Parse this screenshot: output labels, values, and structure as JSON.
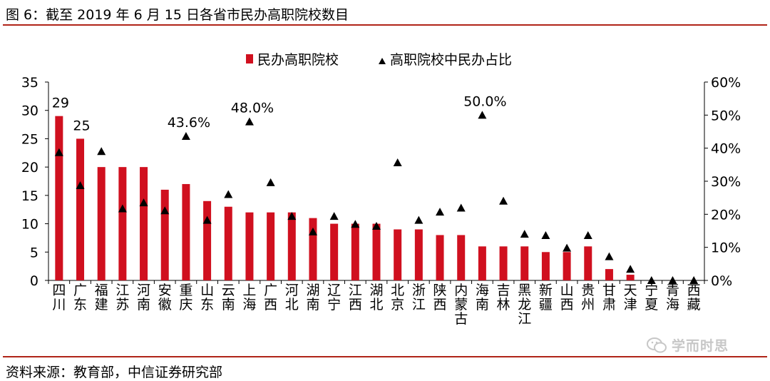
{
  "figure": {
    "title": "图 6：截至 2019 年 6 月 15 日各省市民办高职院校数目",
    "source": "资料来源：教育部，中信证券研究部",
    "watermark": "学而时思"
  },
  "chart_data": {
    "type": "bar",
    "categories": [
      "四川",
      "广东",
      "福建",
      "江苏",
      "河南",
      "安徽",
      "重庆",
      "山东",
      "云南",
      "上海",
      "广西",
      "河北",
      "湖南",
      "辽宁",
      "江西",
      "湖北",
      "北京",
      "浙江",
      "陕西",
      "内蒙古",
      "海南",
      "吉林",
      "黑龙江",
      "新疆",
      "山西",
      "贵州",
      "甘肃",
      "天津",
      "宁夏",
      "青海",
      "西藏"
    ],
    "series": [
      {
        "name": "民办高职院校",
        "kind": "bar",
        "axis": "left",
        "color": "#d0101f",
        "values": [
          29,
          25,
          20,
          20,
          20,
          16,
          17,
          14,
          13,
          12,
          12,
          12,
          11,
          10,
          10,
          10,
          9,
          9,
          8,
          8,
          6,
          6,
          6,
          5,
          5,
          6,
          2,
          1,
          0,
          0,
          0
        ]
      },
      {
        "name": "高职院校中民办占比",
        "kind": "marker",
        "axis": "right",
        "color": "#000000",
        "values": [
          38.7,
          28.7,
          39.0,
          21.7,
          23.5,
          21.1,
          43.6,
          18.2,
          26.0,
          48.0,
          29.6,
          19.4,
          14.7,
          19.4,
          17.0,
          16.4,
          35.6,
          18.2,
          20.7,
          21.9,
          50.0,
          24.0,
          14.0,
          13.6,
          9.8,
          13.6,
          7.2,
          3.4,
          0,
          0,
          0
        ]
      }
    ],
    "bar_labels": [
      {
        "category": "四川",
        "text": "29"
      },
      {
        "category": "广东",
        "text": "25"
      }
    ],
    "marker_labels": [
      {
        "category": "重庆",
        "text": "43.6%"
      },
      {
        "category": "上海",
        "text": "48.0%"
      },
      {
        "category": "海南",
        "text": "50.0%"
      }
    ],
    "y_left": {
      "min": 0,
      "max": 35,
      "ticks": [
        "0",
        "5",
        "10",
        "15",
        "20",
        "25",
        "30",
        "35"
      ]
    },
    "y_right": {
      "min": 0,
      "max": 60,
      "ticks": [
        "0%",
        "10%",
        "20%",
        "30%",
        "40%",
        "50%",
        "60%"
      ]
    },
    "legend_position": "top-center",
    "grid": false
  }
}
